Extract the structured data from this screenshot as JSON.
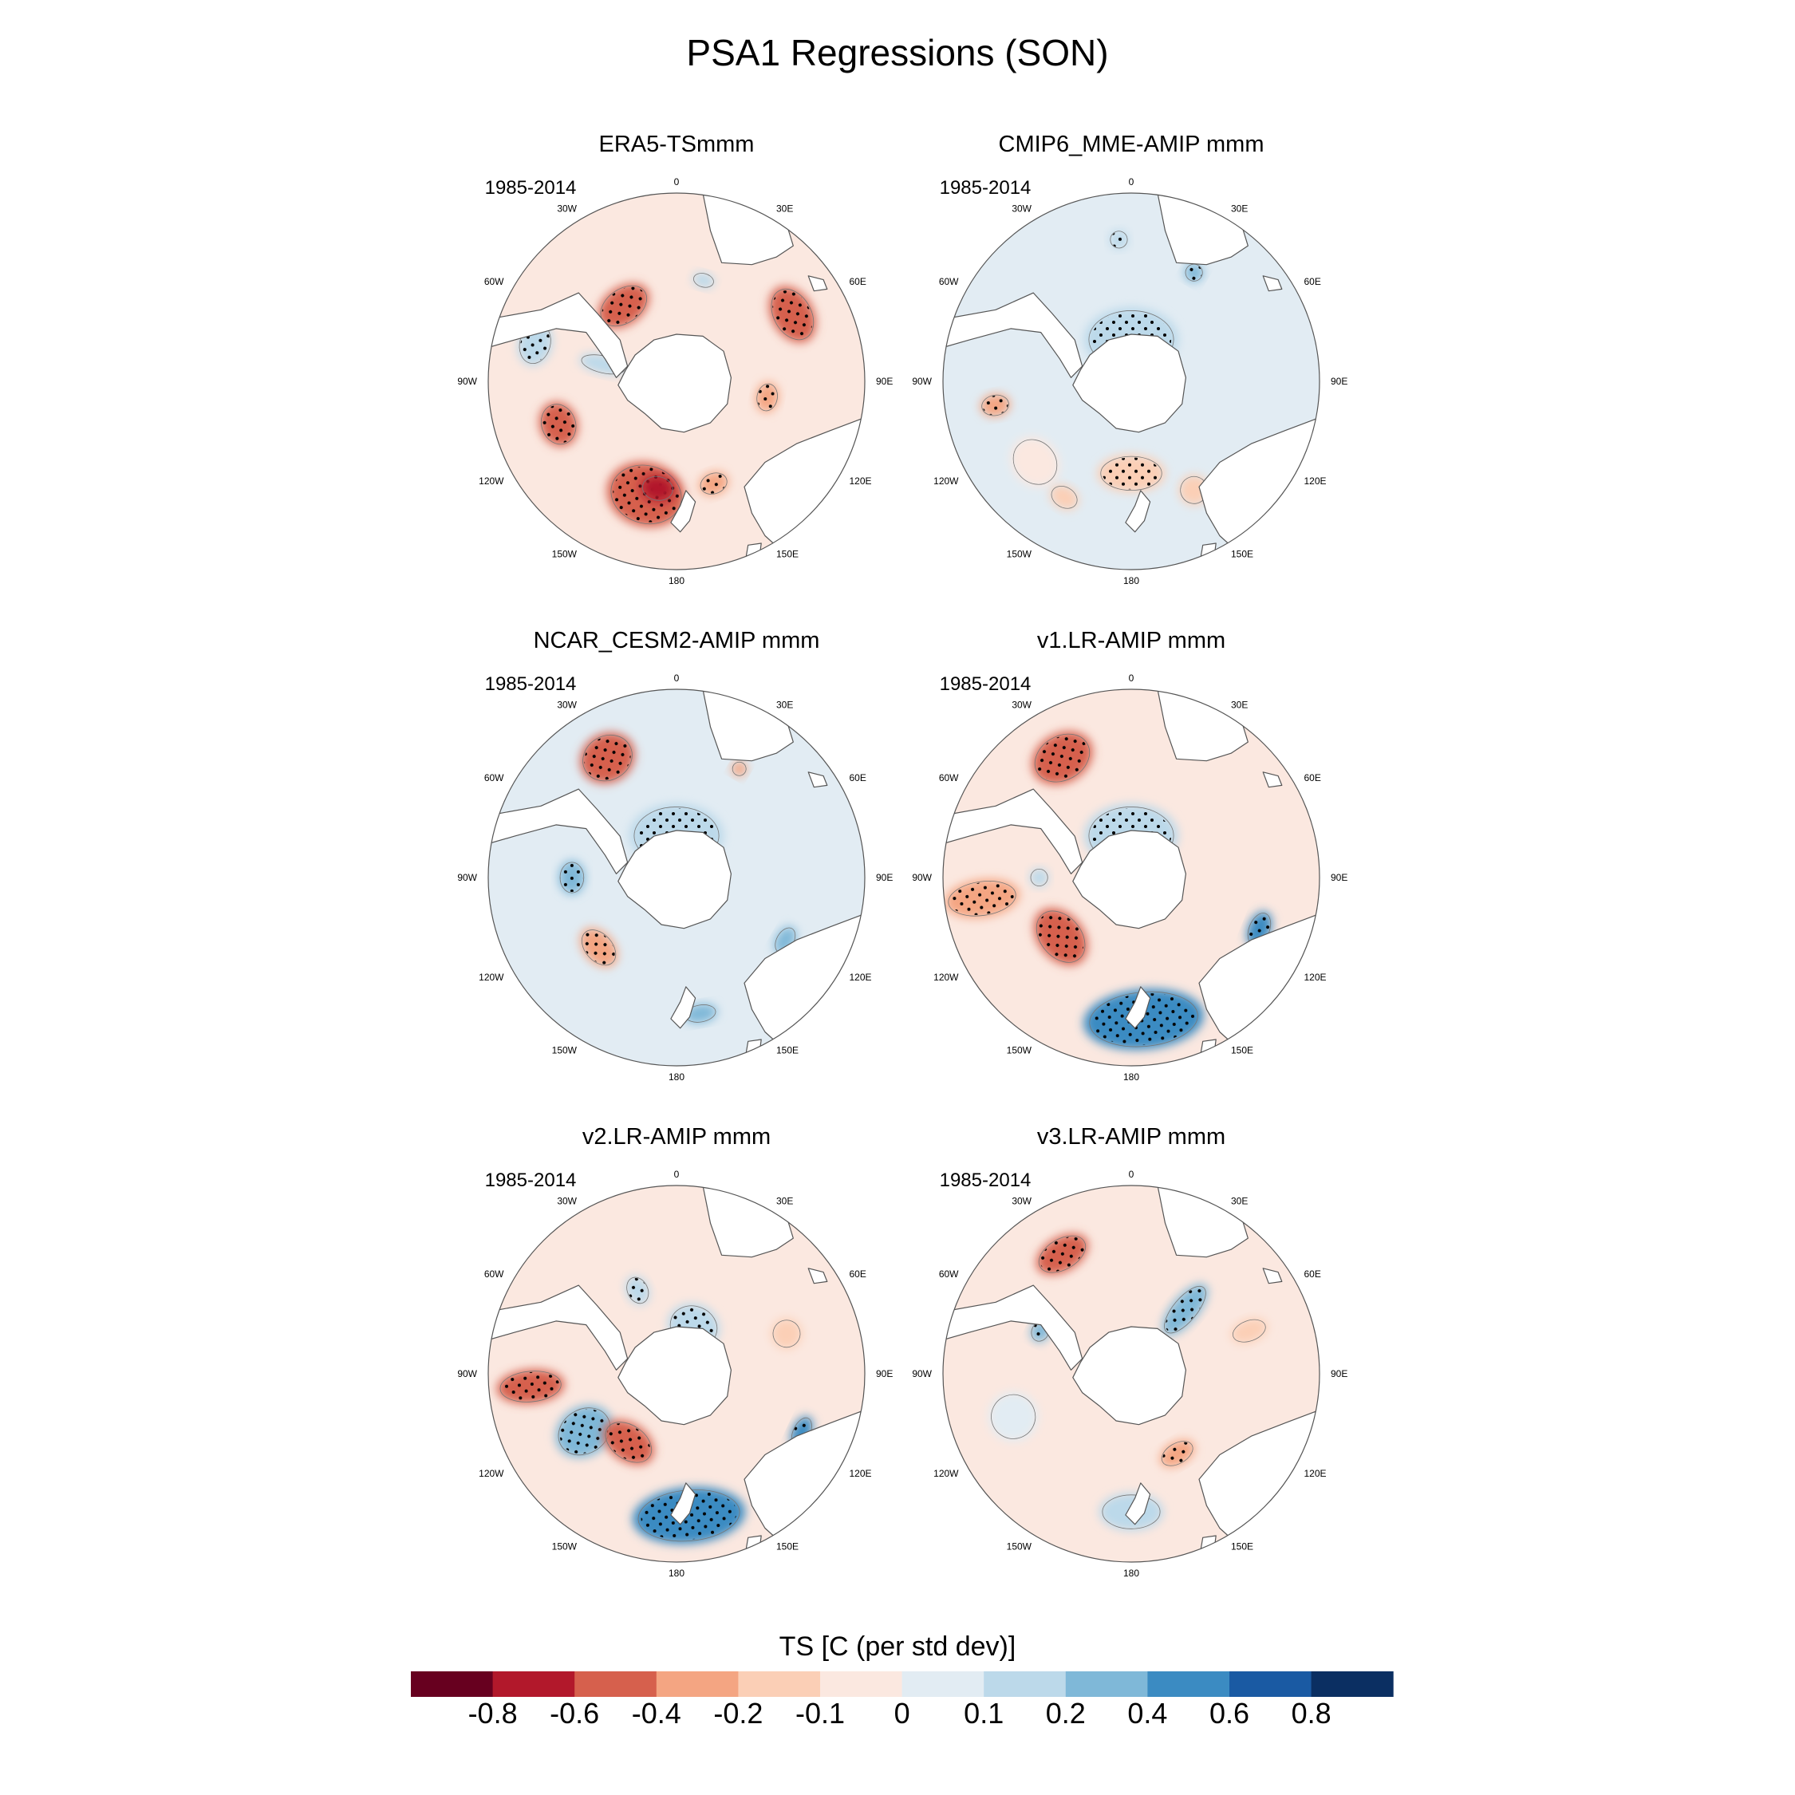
{
  "title": "PSA1 Regressions (SON)",
  "colors": {
    "land": "#ffffff",
    "coast": "#555555",
    "border": "#555555",
    "stipple": "#000000",
    "contour": "#777777"
  },
  "chart_data": {
    "type": "heatmap",
    "projection": "south-polar-stereographic",
    "variable": "TS",
    "units_label": "TS [C (per std dev)]",
    "period": "1985-2014",
    "lon_labels": [
      "0",
      "30E",
      "60E",
      "90E",
      "120E",
      "150E",
      "180",
      "150W",
      "120W",
      "90W",
      "60W",
      "30W"
    ],
    "colorbar": {
      "levels": [
        "-0.8",
        "-0.6",
        "-0.4",
        "-0.2",
        "-0.1",
        "0",
        "0.1",
        "0.2",
        "0.4",
        "0.6",
        "0.8"
      ],
      "colors": [
        "#67001f",
        "#b2182b",
        "#d6604d",
        "#f4a582",
        "#fbcfb6",
        "#fbe8e0",
        "#e2ecf3",
        "#bcd9ea",
        "#7fb8d8",
        "#3b8bc2",
        "#1a5aa3",
        "#0b2f62"
      ]
    },
    "panels": [
      {
        "name": "ERA5-TSmmm",
        "period": "1985-2014",
        "background_bin": 5,
        "anomalies": [
          {
            "lon": 195,
            "colat": 28,
            "rx": 0.21,
            "ry": 0.17,
            "bin": 2,
            "stipple": true
          },
          {
            "lon": 190,
            "colat": 26,
            "rx": 0.09,
            "ry": 0.07,
            "bin": 1
          },
          {
            "lon": 250,
            "colat": 30,
            "rx": 0.12,
            "ry": 0.1,
            "bin": 2,
            "stipple": true
          },
          {
            "lon": 285,
            "colat": 35,
            "rx": 0.12,
            "ry": 0.09,
            "bin": 7,
            "stipple": true
          },
          {
            "lon": 283,
            "colat": 18,
            "rx": 0.05,
            "ry": 0.13,
            "bin": 7
          },
          {
            "lon": 325,
            "colat": 22,
            "rx": 0.15,
            "ry": 0.1,
            "bin": 2,
            "stipple": true
          },
          {
            "lon": 60,
            "colat": 32,
            "rx": 0.16,
            "ry": 0.11,
            "bin": 2,
            "stipple": true
          },
          {
            "lon": 100,
            "colat": 22,
            "rx": 0.08,
            "ry": 0.06,
            "bin": 3,
            "stipple": true
          },
          {
            "lon": 15,
            "colat": 25,
            "rx": 0.06,
            "ry": 0.04,
            "bin": 7
          },
          {
            "lon": 160,
            "colat": 26,
            "rx": 0.08,
            "ry": 0.06,
            "bin": 3,
            "stipple": true
          }
        ]
      },
      {
        "name": "CMIP6_MME-AMIP  mmm",
        "period": "1985-2014",
        "background_bin": 6,
        "anomalies": [
          {
            "lon": 0,
            "colat": 10,
            "rx": 0.25,
            "ry": 0.17,
            "bin": 7,
            "stipple": true
          },
          {
            "lon": 180,
            "colat": 22,
            "rx": 0.18,
            "ry": 0.1,
            "bin": 4,
            "stipple": true
          },
          {
            "lon": 260,
            "colat": 33,
            "rx": 0.06,
            "ry": 0.08,
            "bin": 3,
            "stipple": true
          },
          {
            "lon": 355,
            "colat": 34,
            "rx": 0.05,
            "ry": 0.05,
            "bin": 7,
            "stipple": true
          },
          {
            "lon": 30,
            "colat": 30,
            "rx": 0.05,
            "ry": 0.05,
            "bin": 8,
            "stipple": true
          },
          {
            "lon": 150,
            "colat": 30,
            "rx": 0.08,
            "ry": 0.08,
            "bin": 4
          },
          {
            "lon": 230,
            "colat": 30,
            "rx": 0.14,
            "ry": 0.12,
            "bin": 5
          },
          {
            "lon": 210,
            "colat": 32,
            "rx": 0.08,
            "ry": 0.06,
            "bin": 4
          }
        ]
      },
      {
        "name": "NCAR_CESM2-AMIP  mmm",
        "period": "1985-2014",
        "background_bin": 6,
        "anomalies": [
          {
            "lon": 330,
            "colat": 33,
            "rx": 0.15,
            "ry": 0.13,
            "bin": 2,
            "stipple": true
          },
          {
            "lon": 0,
            "colat": 10,
            "rx": 0.25,
            "ry": 0.17,
            "bin": 7,
            "stipple": true
          },
          {
            "lon": 270,
            "colat": 25,
            "rx": 0.09,
            "ry": 0.07,
            "bin": 8,
            "stipple": true
          },
          {
            "lon": 228,
            "colat": 25,
            "rx": 0.12,
            "ry": 0.08,
            "bin": 3,
            "stipple": true
          },
          {
            "lon": 120,
            "colat": 30,
            "rx": 0.08,
            "ry": 0.05,
            "bin": 8
          },
          {
            "lon": 170,
            "colat": 33,
            "rx": 0.09,
            "ry": 0.05,
            "bin": 8
          },
          {
            "lon": 30,
            "colat": 30,
            "rx": 0.04,
            "ry": 0.04,
            "bin": 3
          }
        ]
      },
      {
        "name": "v1.LR-AMIP  mmm",
        "period": "1985-2014",
        "background_bin": 5,
        "anomalies": [
          {
            "lon": 330,
            "colat": 33,
            "rx": 0.17,
            "ry": 0.13,
            "bin": 2,
            "stipple": true
          },
          {
            "lon": 0,
            "colat": 10,
            "rx": 0.25,
            "ry": 0.17,
            "bin": 7,
            "stipple": true
          },
          {
            "lon": 230,
            "colat": 22,
            "rx": 0.17,
            "ry": 0.12,
            "bin": 2,
            "stipple": true
          },
          {
            "lon": 175,
            "colat": 34,
            "rx": 0.32,
            "ry": 0.16,
            "bin": 9,
            "stipple": true
          },
          {
            "lon": 262,
            "colat": 36,
            "rx": 0.1,
            "ry": 0.2,
            "bin": 3,
            "stipple": true
          },
          {
            "lon": 112,
            "colat": 33,
            "rx": 0.1,
            "ry": 0.06,
            "bin": 9,
            "stipple": true
          },
          {
            "lon": 270,
            "colat": 22,
            "rx": 0.05,
            "ry": 0.05,
            "bin": 7
          }
        ]
      },
      {
        "name": "v2.LR-AMIP  mmm",
        "period": "1985-2014",
        "background_bin": 5,
        "anomalies": [
          {
            "lon": 265,
            "colat": 35,
            "rx": 0.09,
            "ry": 0.18,
            "bin": 2,
            "stipple": true
          },
          {
            "lon": 238,
            "colat": 26,
            "rx": 0.13,
            "ry": 0.16,
            "bin": 8,
            "stipple": true
          },
          {
            "lon": 175,
            "colat": 34,
            "rx": 0.3,
            "ry": 0.15,
            "bin": 9,
            "stipple": true
          },
          {
            "lon": 215,
            "colat": 20,
            "rx": 0.15,
            "ry": 0.1,
            "bin": 2,
            "stipple": true
          },
          {
            "lon": 20,
            "colat": 12,
            "rx": 0.14,
            "ry": 0.12,
            "bin": 7,
            "stipple": true
          },
          {
            "lon": 115,
            "colat": 33,
            "rx": 0.09,
            "ry": 0.05,
            "bin": 9,
            "stipple": true
          },
          {
            "lon": 335,
            "colat": 22,
            "rx": 0.06,
            "ry": 0.08,
            "bin": 7,
            "stipple": true
          },
          {
            "lon": 70,
            "colat": 28,
            "rx": 0.08,
            "ry": 0.08,
            "bin": 4
          }
        ]
      },
      {
        "name": "v3.LR-AMIP  mmm",
        "period": "1985-2014",
        "background_bin": 5,
        "anomalies": [
          {
            "lon": 330,
            "colat": 33,
            "rx": 0.15,
            "ry": 0.09,
            "bin": 2,
            "stipple": true
          },
          {
            "lon": 40,
            "colat": 20,
            "rx": 0.07,
            "ry": 0.17,
            "bin": 8,
            "stipple": true
          },
          {
            "lon": 295,
            "colat": 24,
            "rx": 0.06,
            "ry": 0.05,
            "bin": 8,
            "stipple": true
          },
          {
            "lon": 150,
            "colat": 22,
            "rx": 0.1,
            "ry": 0.06,
            "bin": 3,
            "stipple": true
          },
          {
            "lon": 180,
            "colat": 33,
            "rx": 0.17,
            "ry": 0.1,
            "bin": 7
          },
          {
            "lon": 250,
            "colat": 30,
            "rx": 0.13,
            "ry": 0.13,
            "bin": 6
          },
          {
            "lon": 70,
            "colat": 30,
            "rx": 0.06,
            "ry": 0.1,
            "bin": 4
          }
        ]
      }
    ]
  }
}
